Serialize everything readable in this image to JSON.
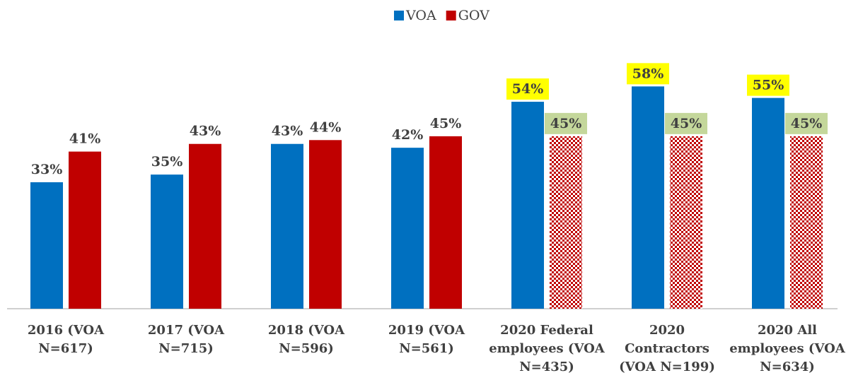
{
  "chart_data": {
    "type": "bar",
    "categories": [
      "2016 (VOA N=617)",
      "2017 (VOA N=715)",
      "2018 (VOA N=596)",
      "2019 (VOA N=561)",
      "2020 Federal employees (VOA N=435)",
      "2020 Contractors (VOA N=199)",
      "2020 All employees (VOA N=634)"
    ],
    "series": [
      {
        "name": "VOA",
        "color": "#0070c0",
        "values": [
          33,
          35,
          43,
          42,
          54,
          58,
          55
        ],
        "value_labels": [
          "33%",
          "35%",
          "43%",
          "42%",
          "54%",
          "58%",
          "55%"
        ],
        "label_backgrounds": [
          null,
          null,
          null,
          null,
          "#ffff00",
          "#ffff00",
          "#ffff00"
        ]
      },
      {
        "name": "GOV",
        "color": "#c00000",
        "values": [
          41,
          43,
          44,
          45,
          45,
          45,
          45
        ],
        "value_labels": [
          "41%",
          "43%",
          "44%",
          "45%",
          "45%",
          "45%",
          "45%"
        ],
        "label_backgrounds": [
          null,
          null,
          null,
          null,
          "#c4d79b",
          "#c4d79b",
          "#c4d79b"
        ],
        "hatched": [
          false,
          false,
          false,
          false,
          true,
          true,
          true
        ]
      }
    ],
    "ylim": [
      0,
      80
    ],
    "legend": "top"
  }
}
